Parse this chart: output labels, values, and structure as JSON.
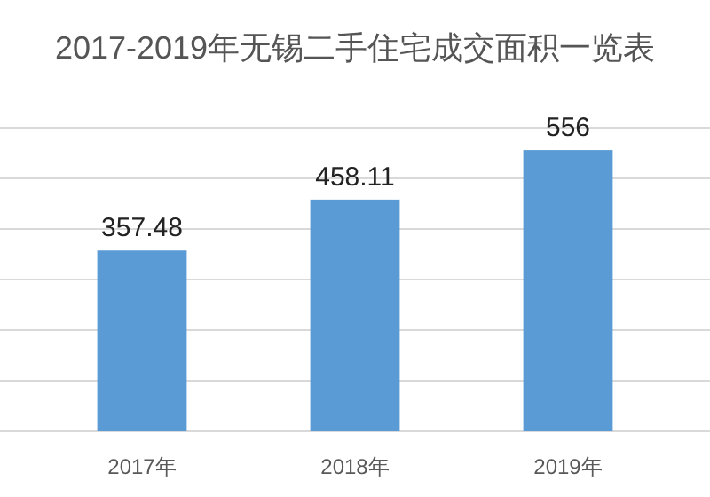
{
  "chart_data": {
    "type": "bar",
    "title": "2017-2019年无锡二手住宅成交面积一览表",
    "categories": [
      "2017年",
      "2018年",
      "2019年"
    ],
    "values": [
      357.48,
      458.11,
      556
    ],
    "color": "#5b9bd5",
    "data_labels": true,
    "ylim": [
      0,
      600
    ],
    "yticks": [
      {
        "value": 0,
        "label": null
      },
      {
        "value": 100,
        "label": null
      },
      {
        "value": 200,
        "label": null
      },
      {
        "value": 300,
        "label": null
      },
      {
        "value": 400,
        "label": null
      },
      {
        "value": 500,
        "label": null
      },
      {
        "value": 600,
        "label": null
      }
    ],
    "tick_labels": "x",
    "grid": "y"
  }
}
